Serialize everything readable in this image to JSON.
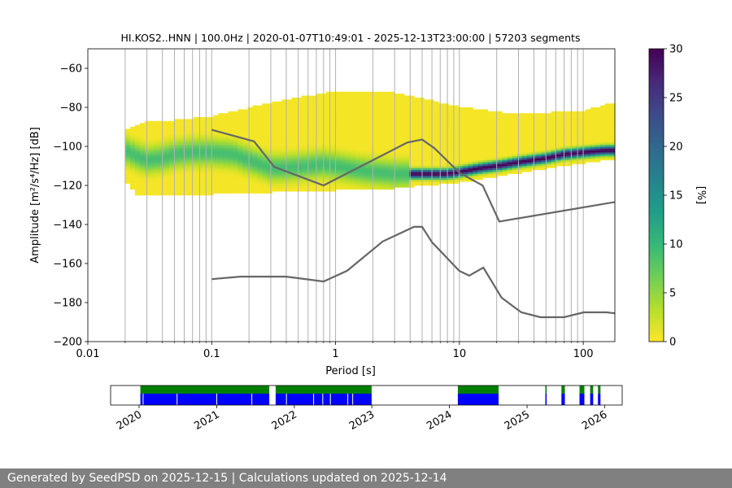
{
  "colors": {
    "nlnm_nhnm_line": "#666666",
    "grid": "#b0b0b0",
    "availability_data": "#0000ff",
    "availability_gap_check": "#008000",
    "footer_background": "#808080",
    "viridis": [
      "#fde725",
      "#b5de2b",
      "#6ece58",
      "#35b779",
      "#1f9e89",
      "#26828e",
      "#31688e",
      "#3e4989",
      "#482878",
      "#440154"
    ]
  },
  "footer": {
    "text": "Generated by SeedPSD on 2025-12-15 | Calculations updated on 2025-12-14"
  },
  "chart_data": [
    {
      "type": "heatmap",
      "title": "HI.KOS2..HNN | 100.0Hz | 2020-01-07T10:49:01 - 2025-12-13T23:00:00 | 57203 segments",
      "xlabel": "Period [s]",
      "ylabel": "Amplitude [m²/s⁴/Hz] [dB]",
      "xscale": "log",
      "xlim": [
        0.01,
        180
      ],
      "ylim": [
        -200,
        -50
      ],
      "xticks": [
        0.01,
        0.1,
        1,
        10,
        100
      ],
      "xtick_labels": [
        "0.01",
        "0.1",
        "1",
        "10",
        "100"
      ],
      "yticks": [
        -200,
        -180,
        -160,
        -140,
        -120,
        -100,
        -80,
        -60
      ],
      "ytick_labels": [
        "−200",
        "−180",
        "−160",
        "−140",
        "−120",
        "−100",
        "−80",
        "−60"
      ],
      "grid": "vertical",
      "colorbar": {
        "label": "[%]",
        "range": [
          0,
          30
        ],
        "ticks": [
          0,
          5,
          10,
          15,
          20,
          25,
          30
        ],
        "tick_labels": [
          "0",
          "5",
          "10",
          "15",
          "20",
          "25",
          "30"
        ],
        "colormap": "viridis"
      },
      "psd_mode": {
        "period": [
          0.02,
          0.025,
          0.03,
          0.04,
          0.05,
          0.07,
          0.1,
          0.15,
          0.2,
          0.3,
          0.4,
          0.6,
          0.8,
          1,
          1.5,
          2,
          3,
          4,
          5,
          6,
          8,
          10,
          15,
          20,
          30,
          50,
          70,
          100,
          150,
          180
        ],
        "amplitude": [
          -102,
          -105,
          -107,
          -106,
          -104,
          -103,
          -103,
          -104,
          -107,
          -111,
          -111,
          -110,
          -109,
          -110,
          -112,
          -113,
          -114,
          -114,
          -114,
          -114,
          -114,
          -113,
          -111,
          -110,
          -108,
          -106,
          -104,
          -103,
          -102,
          -102
        ]
      },
      "psd_upper_extent": {
        "period": [
          0.02,
          0.03,
          0.05,
          0.1,
          0.3,
          1,
          3,
          10,
          30,
          100,
          180
        ],
        "amplitude": [
          -92,
          -88,
          -87,
          -85,
          -78,
          -72,
          -73,
          -80,
          -84,
          -82,
          -78
        ]
      },
      "psd_lower_extent": {
        "period": [
          0.02,
          0.025,
          0.1,
          1,
          3,
          10,
          20,
          50,
          100,
          180
        ],
        "amplitude": [
          -117,
          -125,
          -124,
          -122,
          -121,
          -118,
          -115,
          -111,
          -108,
          -106
        ]
      },
      "series": [
        {
          "period": [
            0.1,
            0.22,
            0.32,
            0.8,
            3.8,
            5.0,
            6.3,
            10.0,
            15.4,
            21.0,
            180.0
          ],
          "amplitude": [
            -91.5,
            -97.4,
            -110.5,
            -120.0,
            -98.0,
            -96.5,
            -101.0,
            -113.5,
            -120.0,
            -138.5,
            -128.5
          ]
        },
        {
          "period": [
            0.1,
            0.17,
            0.4,
            0.8,
            1.24,
            2.4,
            4.3,
            5.0,
            6.0,
            10.0,
            12.0,
            15.6,
            21.9,
            31.6,
            45.0,
            70.0,
            101.0,
            154.0,
            180.0
          ],
          "amplitude": [
            -168.0,
            -166.7,
            -166.7,
            -169.2,
            -163.7,
            -148.7,
            -141.2,
            -141.2,
            -149.1,
            -163.8,
            -166.2,
            -162.1,
            -177.5,
            -185.0,
            -187.5,
            -187.5,
            -185.0,
            -185.0,
            -185.5
          ]
        }
      ],
      "grid_period_lines": [
        0.02,
        0.03,
        0.04,
        0.05,
        0.06,
        0.07,
        0.08,
        0.09,
        0.1,
        0.2,
        0.3,
        0.4,
        0.5,
        0.6,
        0.7,
        0.8,
        0.9,
        1,
        2,
        3,
        4,
        5,
        6,
        7,
        8,
        9,
        10,
        20,
        30,
        40,
        50,
        60,
        70,
        80,
        90,
        100
      ]
    },
    {
      "type": "timeline",
      "xlim": [
        "2019-08-20",
        "2026-03-25"
      ],
      "ticks": [
        "2020-01-01",
        "2021-01-01",
        "2022-01-01",
        "2023-01-01",
        "2024-01-01",
        "2025-01-01",
        "2026-01-01"
      ],
      "tick_labels": [
        "2020",
        "2021",
        "2022",
        "2023",
        "2024",
        "2025",
        "2026"
      ],
      "data_segments": [
        [
          "2020-01-07",
          "2021-09-05"
        ],
        [
          "2021-10-05",
          "2022-12-31"
        ],
        [
          "2024-02-10",
          "2024-08-20"
        ],
        [
          "2025-03-28",
          "2025-04-03"
        ],
        [
          "2025-06-12",
          "2025-06-28"
        ],
        [
          "2025-09-05",
          "2025-09-28"
        ],
        [
          "2025-10-25",
          "2025-11-08"
        ],
        [
          "2025-12-01",
          "2025-12-13"
        ]
      ],
      "gap_markers": [
        "2020-01-20",
        "2020-06-28",
        "2021-01-01",
        "2021-06-15",
        "2021-11-25",
        "2022-04-02",
        "2022-05-15",
        "2022-06-20",
        "2022-09-10",
        "2022-10-03"
      ]
    }
  ]
}
